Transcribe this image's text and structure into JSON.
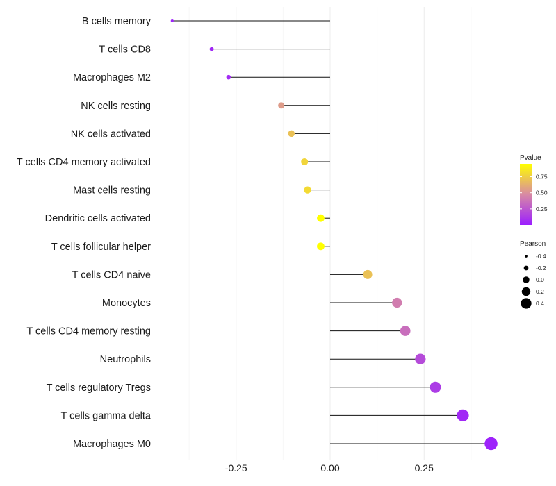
{
  "chart_data": {
    "type": "lollipop",
    "title": "",
    "xlabel": "",
    "ylabel": "",
    "xlim": [
      -0.5,
      0.5
    ],
    "x_ticks": [
      -0.25,
      0.0,
      0.25
    ],
    "x_tick_labels": [
      "-0.25",
      "0.00",
      "0.25"
    ],
    "grid": true,
    "categories": [
      "B cells memory",
      "T cells CD8",
      "Macrophages M2",
      "NK cells resting",
      "NK cells activated",
      "T cells CD4 memory activated",
      "Mast cells resting",
      "Dendritic cells activated",
      "T cells follicular helper",
      "T cells CD4 naive",
      "Monocytes",
      "T cells CD4 memory resting",
      "Neutrophils",
      "T cells regulatory  Tregs ",
      "T cells gamma delta",
      "Macrophages M0"
    ],
    "values": [
      -0.42,
      -0.315,
      -0.27,
      -0.13,
      -0.103,
      -0.068,
      -0.06,
      -0.025,
      -0.025,
      0.1,
      0.178,
      0.2,
      0.24,
      0.28,
      0.353,
      0.428
    ],
    "pvalues": [
      0.02,
      0.05,
      0.06,
      0.55,
      0.7,
      0.78,
      0.8,
      0.95,
      0.95,
      0.7,
      0.42,
      0.35,
      0.2,
      0.13,
      0.05,
      0.02
    ],
    "legend": {
      "position": "right",
      "color": {
        "title": "Pvalue",
        "ticks": [
          0.25,
          0.5,
          0.75
        ],
        "tick_labels": [
          "0.25",
          "0.50",
          "0.75"
        ],
        "range": [
          0.0,
          0.95
        ],
        "low_color": "#9b1eff",
        "mid_color": "#d88aa4",
        "high_color": "#ffff00"
      },
      "size": {
        "title": "Pearson",
        "values": [
          -0.4,
          -0.2,
          0.0,
          0.2,
          0.4
        ],
        "labels": [
          "-0.4",
          "-0.2",
          "0.0",
          "0.2",
          "0.4"
        ]
      }
    }
  }
}
